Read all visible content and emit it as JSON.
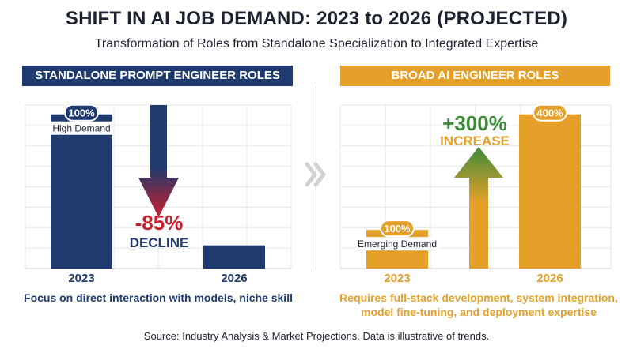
{
  "title": "SHIFT IN AI JOB DEMAND: 2023 to 2026 (PROJECTED)",
  "subtitle": "Transformation of Roles from Standalone Specialization to Integrated Expertise",
  "colors": {
    "navy": "#1e3a6e",
    "orange": "#e5a02a",
    "decline_red": "#c8202c",
    "increase_green": "#3d8b3a"
  },
  "icons": {
    "chevron": "double-chevron-right-icon",
    "down_arrow": "down-arrow-icon",
    "up_arrow": "up-arrow-icon"
  },
  "left_panel": {
    "header": "STANDALONE PROMPT ENGINEER ROLES",
    "caption": "Focus on direct interaction with models, niche skill",
    "change": {
      "value": "-85%",
      "label": "DECLINE"
    }
  },
  "right_panel": {
    "header": "BROAD AI ENGINEER ROLES",
    "caption_lines": [
      "Requires full-stack development, system integration,",
      "model fine-tuning, and deployment expertise"
    ],
    "change": {
      "value": "+300%",
      "label": "INCREASE"
    }
  },
  "chart_data": [
    {
      "type": "bar",
      "title": "STANDALONE PROMPT ENGINEER ROLES",
      "categories": [
        "2023",
        "2026"
      ],
      "values": [
        100,
        15
      ],
      "labels": [
        "100%",
        ""
      ],
      "sublabels": [
        "High Demand",
        ""
      ],
      "ylim": [
        0,
        106
      ],
      "grid": true
    },
    {
      "type": "bar",
      "title": "BROAD AI ENGINEER ROLES",
      "categories": [
        "2023",
        "2026"
      ],
      "values": [
        100,
        400
      ],
      "labels": [
        "100%",
        "400%"
      ],
      "sublabels": [
        "Emerging Demand",
        ""
      ],
      "ylim": [
        0,
        424
      ],
      "grid": true
    }
  ],
  "source": "Source: Industry Analysis & Market Projections. Data is illustrative of trends."
}
